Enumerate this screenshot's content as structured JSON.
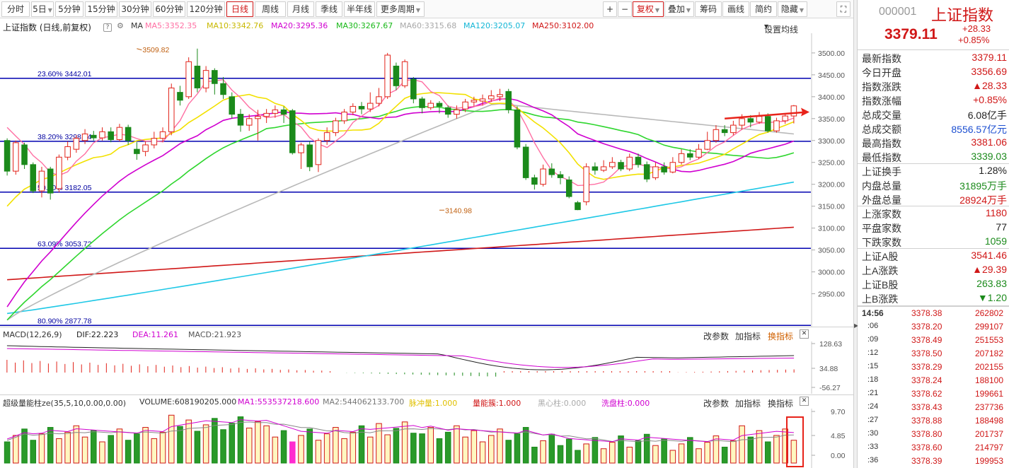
{
  "toolbar": {
    "periods": [
      "分时",
      "5日",
      "5分钟",
      "15分钟",
      "30分钟",
      "60分钟",
      "120分钟",
      "日线",
      "周线",
      "月线",
      "季线",
      "半年线",
      "更多周期"
    ],
    "active_period": "日线",
    "tools": [
      "+",
      "−",
      "复权",
      "叠加",
      "筹码",
      "画线",
      "简约",
      "隐藏"
    ]
  },
  "chart_header": {
    "title": "上证指数 (日线,前复权)",
    "ma_label": "MA",
    "ma5": "MA5:3352.35",
    "ma10": "MA10:3342.76",
    "ma20": "MA20:3295.36",
    "ma30": "MA30:3267.67",
    "ma60": "MA60:3315.68",
    "ma120": "MA120:3205.07",
    "ma250": "MA250:3102.00",
    "settings": "设置均线"
  },
  "colors": {
    "up": "#e2231a",
    "down": "#1b8a1b",
    "ma5": "#ff6fa3",
    "ma10": "#f2e100",
    "ma20": "#d000d0",
    "ma30": "#2fd62f",
    "ma60": "#b8b8b8",
    "ma120": "#1ec8e6",
    "ma250": "#d01717",
    "fib": "#0000b0"
  },
  "chart_data": [
    {
      "type": "candlestick",
      "title": "上证指数 (日线,前复权)",
      "y_ticks": [
        "3500.00",
        "3450.00",
        "3400.00",
        "3350.00",
        "3300.00",
        "3250.00",
        "3200.00",
        "3150.00",
        "3100.00",
        "3050.00",
        "3000.00",
        "2950.00"
      ],
      "ylim": [
        2875,
        3545
      ],
      "fib_lines": [
        {
          "label": "23.60% 3442.01",
          "value": 3442.01
        },
        {
          "label": "38.20% 3298.24",
          "value": 3298.24
        },
        {
          "label": "50.00% 3182.05",
          "value": 3182.05
        },
        {
          "label": "63.09% 3053.72",
          "value": 3053.72
        },
        {
          "label": "80.90% 2877.78",
          "value": 2877.78
        }
      ],
      "annotations": [
        {
          "label": "3509.82",
          "index": 15,
          "value": 3509.82
        },
        {
          "label": "3140.98",
          "index": 50,
          "value": 3140.98
        }
      ],
      "candles": [
        {
          "o": 3300,
          "c": 3230,
          "h": 3305,
          "l": 3220
        },
        {
          "o": 3230,
          "c": 3295,
          "h": 3300,
          "l": 3222
        },
        {
          "o": 3290,
          "c": 3245,
          "h": 3295,
          "l": 3235
        },
        {
          "o": 3245,
          "c": 3185,
          "h": 3250,
          "l": 3180
        },
        {
          "o": 3185,
          "c": 3230,
          "h": 3240,
          "l": 3170
        },
        {
          "o": 3235,
          "c": 3180,
          "h": 3240,
          "l": 3165
        },
        {
          "o": 3190,
          "c": 3262,
          "h": 3268,
          "l": 3182
        },
        {
          "o": 3262,
          "c": 3286,
          "h": 3298,
          "l": 3255
        },
        {
          "o": 3280,
          "c": 3305,
          "h": 3312,
          "l": 3272
        },
        {
          "o": 3300,
          "c": 3315,
          "h": 3326,
          "l": 3292
        },
        {
          "o": 3312,
          "c": 3306,
          "h": 3322,
          "l": 3300
        },
        {
          "o": 3306,
          "c": 3320,
          "h": 3330,
          "l": 3300
        },
        {
          "o": 3320,
          "c": 3302,
          "h": 3330,
          "l": 3296
        },
        {
          "o": 3302,
          "c": 3330,
          "h": 3338,
          "l": 3298
        },
        {
          "o": 3330,
          "c": 3300,
          "h": 3336,
          "l": 3290
        },
        {
          "o": 3280,
          "c": 3270,
          "h": 3296,
          "l": 3256
        },
        {
          "o": 3275,
          "c": 3290,
          "h": 3298,
          "l": 3264
        },
        {
          "o": 3290,
          "c": 3305,
          "h": 3320,
          "l": 3282
        },
        {
          "o": 3305,
          "c": 3320,
          "h": 3330,
          "l": 3296
        },
        {
          "o": 3320,
          "c": 3420,
          "h": 3430,
          "l": 3312
        },
        {
          "o": 3410,
          "c": 3392,
          "h": 3425,
          "l": 3380
        },
        {
          "o": 3400,
          "c": 3480,
          "h": 3490,
          "l": 3395
        },
        {
          "o": 3470,
          "c": 3420,
          "h": 3509.82,
          "l": 3410
        },
        {
          "o": 3420,
          "c": 3460,
          "h": 3470,
          "l": 3410
        },
        {
          "o": 3460,
          "c": 3430,
          "h": 3465,
          "l": 3405
        },
        {
          "o": 3430,
          "c": 3405,
          "h": 3445,
          "l": 3395
        },
        {
          "o": 3400,
          "c": 3360,
          "h": 3410,
          "l": 3350
        },
        {
          "o": 3360,
          "c": 3335,
          "h": 3372,
          "l": 3320
        },
        {
          "o": 3335,
          "c": 3350,
          "h": 3360,
          "l": 3322
        },
        {
          "o": 3350,
          "c": 3355,
          "h": 3370,
          "l": 3300
        },
        {
          "o": 3355,
          "c": 3362,
          "h": 3372,
          "l": 3340
        },
        {
          "o": 3362,
          "c": 3370,
          "h": 3380,
          "l": 3352
        },
        {
          "o": 3370,
          "c": 3360,
          "h": 3378,
          "l": 3340
        },
        {
          "o": 3368,
          "c": 3272,
          "h": 3372,
          "l": 3268
        },
        {
          "o": 3272,
          "c": 3290,
          "h": 3295,
          "l": 3235
        },
        {
          "o": 3290,
          "c": 3240,
          "h": 3298,
          "l": 3230
        },
        {
          "o": 3245,
          "c": 3300,
          "h": 3305,
          "l": 3228
        },
        {
          "o": 3300,
          "c": 3318,
          "h": 3330,
          "l": 3290
        },
        {
          "o": 3318,
          "c": 3345,
          "h": 3352,
          "l": 3310
        },
        {
          "o": 3345,
          "c": 3365,
          "h": 3372,
          "l": 3338
        },
        {
          "o": 3365,
          "c": 3378,
          "h": 3385,
          "l": 3358
        },
        {
          "o": 3378,
          "c": 3372,
          "h": 3388,
          "l": 3360
        },
        {
          "o": 3372,
          "c": 3385,
          "h": 3410,
          "l": 3365
        },
        {
          "o": 3385,
          "c": 3400,
          "h": 3420,
          "l": 3378
        },
        {
          "o": 3400,
          "c": 3495,
          "h": 3500,
          "l": 3395
        },
        {
          "o": 3470,
          "c": 3425,
          "h": 3478,
          "l": 3415
        },
        {
          "o": 3425,
          "c": 3480,
          "h": 3485,
          "l": 3420
        },
        {
          "o": 3440,
          "c": 3395,
          "h": 3445,
          "l": 3385
        },
        {
          "o": 3395,
          "c": 3375,
          "h": 3400,
          "l": 3362
        },
        {
          "o": 3375,
          "c": 3385,
          "h": 3392,
          "l": 3370
        },
        {
          "o": 3385,
          "c": 3378,
          "h": 3390,
          "l": 3362
        },
        {
          "o": 3375,
          "c": 3360,
          "h": 3380,
          "l": 3352
        },
        {
          "o": 3360,
          "c": 3370,
          "h": 3380,
          "l": 3350
        },
        {
          "o": 3372,
          "c": 3388,
          "h": 3395,
          "l": 3365
        },
        {
          "o": 3388,
          "c": 3392,
          "h": 3400,
          "l": 3378
        },
        {
          "o": 3390,
          "c": 3395,
          "h": 3405,
          "l": 3380
        },
        {
          "o": 3395,
          "c": 3402,
          "h": 3415,
          "l": 3388
        },
        {
          "o": 3400,
          "c": 3405,
          "h": 3418,
          "l": 3390
        },
        {
          "o": 3412,
          "c": 3370,
          "h": 3418,
          "l": 3362
        },
        {
          "o": 3370,
          "c": 3285,
          "h": 3378,
          "l": 3280
        },
        {
          "o": 3285,
          "c": 3215,
          "h": 3292,
          "l": 3210
        },
        {
          "o": 3215,
          "c": 3200,
          "h": 3222,
          "l": 3188
        },
        {
          "o": 3200,
          "c": 3235,
          "h": 3245,
          "l": 3195
        },
        {
          "o": 3235,
          "c": 3222,
          "h": 3248,
          "l": 3215
        },
        {
          "o": 3222,
          "c": 3215,
          "h": 3230,
          "l": 3200
        },
        {
          "o": 3210,
          "c": 3172,
          "h": 3218,
          "l": 3168
        },
        {
          "o": 3158,
          "c": 3142,
          "h": 3162,
          "l": 3140.98
        },
        {
          "o": 3160,
          "c": 3240,
          "h": 3248,
          "l": 3152
        },
        {
          "o": 3240,
          "c": 3232,
          "h": 3250,
          "l": 3222
        },
        {
          "o": 3232,
          "c": 3240,
          "h": 3255,
          "l": 3228
        },
        {
          "o": 3240,
          "c": 3250,
          "h": 3262,
          "l": 3235
        },
        {
          "o": 3250,
          "c": 3235,
          "h": 3256,
          "l": 3230
        },
        {
          "o": 3235,
          "c": 3262,
          "h": 3270,
          "l": 3230
        },
        {
          "o": 3262,
          "c": 3245,
          "h": 3270,
          "l": 3238
        },
        {
          "o": 3245,
          "c": 3212,
          "h": 3252,
          "l": 3205
        },
        {
          "o": 3215,
          "c": 3240,
          "h": 3250,
          "l": 3210
        },
        {
          "o": 3240,
          "c": 3228,
          "h": 3250,
          "l": 3222
        },
        {
          "o": 3228,
          "c": 3250,
          "h": 3262,
          "l": 3225
        },
        {
          "o": 3250,
          "c": 3270,
          "h": 3280,
          "l": 3245
        },
        {
          "o": 3270,
          "c": 3262,
          "h": 3280,
          "l": 3255
        },
        {
          "o": 3262,
          "c": 3280,
          "h": 3292,
          "l": 3258
        },
        {
          "o": 3280,
          "c": 3300,
          "h": 3320,
          "l": 3278
        },
        {
          "o": 3300,
          "c": 3325,
          "h": 3335,
          "l": 3295
        },
        {
          "o": 3325,
          "c": 3318,
          "h": 3335,
          "l": 3310
        },
        {
          "o": 3318,
          "c": 3335,
          "h": 3345,
          "l": 3312
        },
        {
          "o": 3335,
          "c": 3350,
          "h": 3360,
          "l": 3325
        },
        {
          "o": 3350,
          "c": 3342,
          "h": 3358,
          "l": 3330
        },
        {
          "o": 3342,
          "c": 3355,
          "h": 3365,
          "l": 3338
        },
        {
          "o": 3355,
          "c": 3322,
          "h": 3362,
          "l": 3318
        },
        {
          "o": 3322,
          "c": 3345,
          "h": 3352,
          "l": 3318
        },
        {
          "o": 3345,
          "c": 3356,
          "h": 3362,
          "l": 3338
        },
        {
          "o": 3356,
          "c": 3379.11,
          "h": 3381.06,
          "l": 3339.03
        }
      ]
    },
    {
      "type": "line",
      "title": "MACD(12,26,9)",
      "series": [
        {
          "name": "DIF:22.223"
        },
        {
          "name": "DEA:11.261"
        },
        {
          "name": "MACD:21.923"
        }
      ],
      "y_ticks": [
        "128.63",
        "34.88",
        "-56.27"
      ]
    },
    {
      "type": "bar",
      "title": "超级量能柱ze(35,5,10,0.00,0.00)",
      "series": [
        {
          "name": "VOLUME:608190205.000"
        },
        {
          "name": "MA1:553537218.600"
        },
        {
          "name": "MA2:544062133.700"
        }
      ],
      "y_ticks": [
        "9.70",
        "4.85",
        "0.00"
      ]
    }
  ],
  "macd_header": {
    "name": "MACD(12,26,9)",
    "dif": "DIF:22.223",
    "dea": "DEA:11.261",
    "macd": "MACD:21.923",
    "links": [
      "改参数",
      "加指标",
      "换指标"
    ]
  },
  "vol_header": {
    "name": "超级量能柱ze(35,5,10,0.00,0.00)",
    "volume": "VOLUME:608190205.000",
    "ma1": "MA1:553537218.600",
    "ma2": "MA2:544062133.700",
    "impulse": "脉冲量:1.000",
    "energy": "量能簇:1.000",
    "black": "黑心柱:0.000",
    "wash": "洗盘柱:0.000",
    "links": [
      "改参数",
      "加指标",
      "换指标"
    ]
  },
  "quote": {
    "code": "000001",
    "name": "上证指数",
    "price": "3379.11",
    "change": "+28.33",
    "pct": "+0.85%",
    "rows": [
      {
        "label": "最新指数",
        "value": "3379.11",
        "color": "red"
      },
      {
        "label": "今日开盘",
        "value": "3356.69",
        "color": "red"
      },
      {
        "label": "指数涨跌",
        "value": "▲28.33",
        "color": "red"
      },
      {
        "label": "指数涨幅",
        "value": "+0.85%",
        "color": "red"
      },
      {
        "label": "总成交量",
        "value": "6.08亿手",
        "color": "dark"
      },
      {
        "label": "总成交额",
        "value": "8556.57亿元",
        "color": "blue"
      },
      {
        "label": "最高指数",
        "value": "3381.06",
        "color": "red"
      },
      {
        "label": "最低指数",
        "value": "3339.03",
        "color": "green"
      },
      {
        "label": "上证换手",
        "value": "1.28%",
        "color": "dark"
      },
      {
        "label": "内盘总量",
        "value": "31895万手",
        "color": "green"
      },
      {
        "label": "外盘总量",
        "value": "28924万手",
        "color": "red"
      },
      {
        "label": "上涨家数",
        "value": "1180",
        "color": "red"
      },
      {
        "label": "平盘家数",
        "value": "77",
        "color": "dark"
      },
      {
        "label": "下跌家数",
        "value": "1059",
        "color": "green"
      },
      {
        "label": "上证A股",
        "value": "3541.46",
        "color": "red"
      },
      {
        "label": "上A涨跌",
        "value": "▲29.39",
        "color": "red"
      },
      {
        "label": "上证B股",
        "value": "263.83",
        "color": "green"
      },
      {
        "label": "上B涨跌",
        "value": "▼1.20",
        "color": "green"
      }
    ],
    "ticks": [
      {
        "time": "14:56",
        "price": "3378.38",
        "vol": "262802"
      },
      {
        "time": ":06",
        "price": "3378.20",
        "vol": "299107"
      },
      {
        "time": ":09",
        "price": "3378.49",
        "vol": "251553"
      },
      {
        "time": ":12",
        "price": "3378.50",
        "vol": "207182"
      },
      {
        "time": ":15",
        "price": "3378.29",
        "vol": "202155"
      },
      {
        "time": ":18",
        "price": "3378.24",
        "vol": "188100"
      },
      {
        "time": ":21",
        "price": "3378.62",
        "vol": "199661"
      },
      {
        "time": ":24",
        "price": "3378.43",
        "vol": "237736"
      },
      {
        "time": ":27",
        "price": "3378.88",
        "vol": "188498"
      },
      {
        "time": ":30",
        "price": "3378.80",
        "vol": "201737"
      },
      {
        "time": ":33",
        "price": "3378.60",
        "vol": "214797"
      },
      {
        "time": ":36",
        "price": "3378.39",
        "vol": "199953"
      }
    ]
  }
}
